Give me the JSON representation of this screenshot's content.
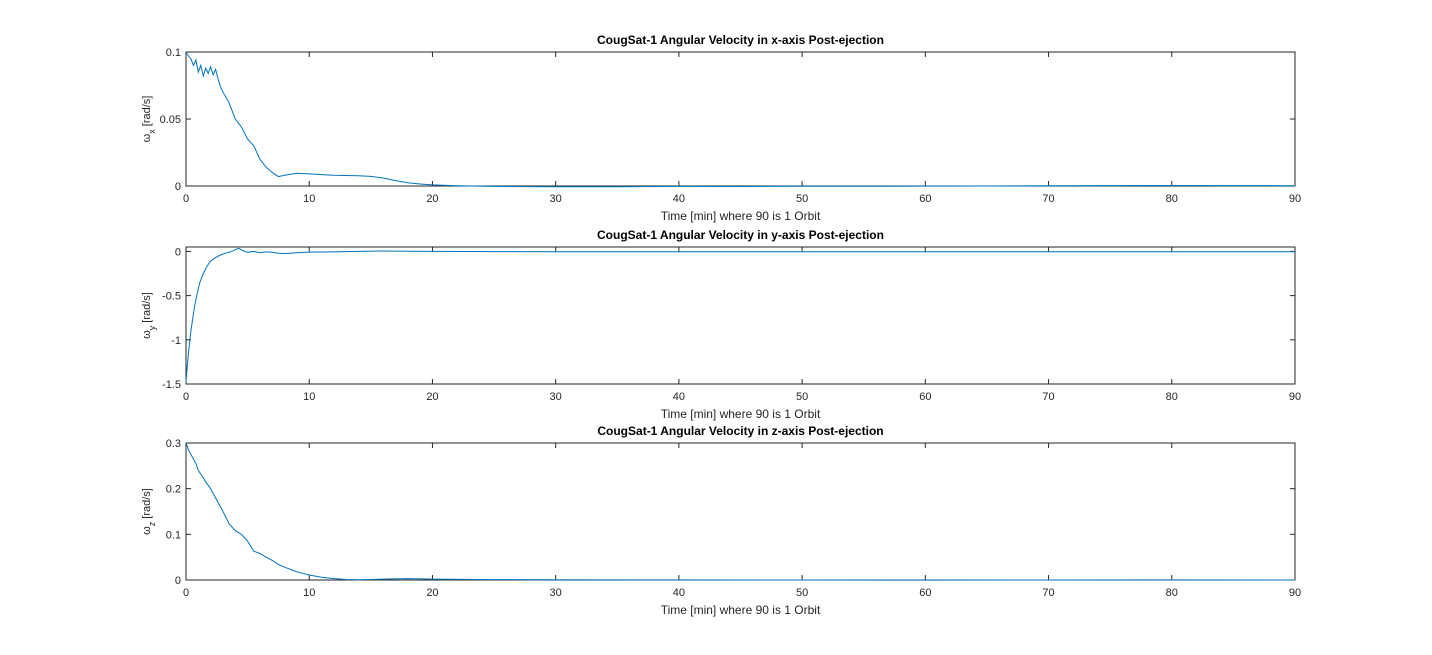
{
  "chart_data": [
    {
      "type": "line",
      "title": "CougSat-1 Angular Velocity in x-axis Post-ejection",
      "xlabel": "Time [min] where 90 is 1 Orbit",
      "ylabel_symbol": "ω",
      "ylabel_sub": "x",
      "ylabel_unit": " [rad/s]",
      "xlim": [
        0,
        90
      ],
      "ylim": [
        0,
        0.1
      ],
      "xticks": [
        0,
        10,
        20,
        30,
        40,
        50,
        60,
        70,
        80,
        90
      ],
      "xtick_labels": [
        "0",
        "10",
        "20",
        "30",
        "40",
        "50",
        "60",
        "70",
        "80",
        "90"
      ],
      "yticks": [
        0,
        0.05,
        0.1
      ],
      "ytick_labels": [
        "0",
        "0.05",
        "0.1"
      ],
      "grid": false,
      "color": "#0072BD",
      "series": [
        {
          "x": [
            0,
            0.2,
            0.4,
            0.6,
            0.8,
            1.0,
            1.2,
            1.4,
            1.6,
            1.8,
            2.0,
            2.2,
            2.4,
            2.6,
            2.8,
            3.0,
            3.5,
            4.0,
            4.5,
            5.0,
            5.5,
            6.0,
            6.5,
            7.0,
            7.5,
            8.0,
            9.0,
            10,
            11,
            12,
            13,
            14,
            15,
            16,
            17,
            18,
            19,
            20,
            22,
            25,
            30,
            35,
            40,
            45,
            50,
            55,
            60,
            65,
            70,
            75,
            80,
            85,
            90
          ],
          "y": [
            0.1,
            0.097,
            0.095,
            0.09,
            0.094,
            0.085,
            0.09,
            0.082,
            0.088,
            0.084,
            0.089,
            0.083,
            0.087,
            0.08,
            0.074,
            0.07,
            0.062,
            0.05,
            0.044,
            0.035,
            0.03,
            0.02,
            0.014,
            0.01,
            0.007,
            0.008,
            0.0095,
            0.009,
            0.0085,
            0.008,
            0.0078,
            0.0076,
            0.0072,
            0.006,
            0.004,
            0.0025,
            0.0015,
            0.0008,
            0.0002,
            -0.0003,
            -0.0006,
            -0.0005,
            -0.0003,
            -0.0004,
            -0.0002,
            -0.0002,
            -0.0001,
            0.0,
            0.0002,
            0.0003,
            0.0004,
            0.0003,
            0.0002
          ]
        }
      ]
    },
    {
      "type": "line",
      "title": "CougSat-1 Angular Velocity in y-axis Post-ejection",
      "xlabel": "Time [min] where 90 is 1 Orbit",
      "ylabel_symbol": "ω",
      "ylabel_sub": "y",
      "ylabel_unit": " [rad/s]",
      "xlim": [
        0,
        90
      ],
      "ylim": [
        -1.5,
        0.05
      ],
      "xticks": [
        0,
        10,
        20,
        30,
        40,
        50,
        60,
        70,
        80,
        90
      ],
      "xtick_labels": [
        "0",
        "10",
        "20",
        "30",
        "40",
        "50",
        "60",
        "70",
        "80",
        "90"
      ],
      "yticks": [
        -1.5,
        -1,
        -0.5,
        0
      ],
      "ytick_labels": [
        "-1.5",
        "-1",
        "-0.5",
        "0"
      ],
      "grid": false,
      "color": "#0072BD",
      "series": [
        {
          "x": [
            0,
            0.1,
            0.2,
            0.35,
            0.5,
            0.7,
            0.9,
            1.1,
            1.4,
            1.7,
            2.0,
            2.4,
            2.8,
            3.2,
            3.6,
            4.0,
            4.3,
            4.6,
            5.0,
            5.5,
            6.0,
            6.5,
            7.0,
            7.5,
            8.0,
            9.0,
            10,
            12,
            14,
            16,
            18,
            20,
            25,
            30,
            40,
            50,
            60,
            70,
            80,
            90
          ],
          "y": [
            -1.48,
            -1.3,
            -1.15,
            -0.95,
            -0.8,
            -0.62,
            -0.48,
            -0.36,
            -0.25,
            -0.17,
            -0.11,
            -0.07,
            -0.04,
            -0.02,
            -0.005,
            0.02,
            0.035,
            0.01,
            -0.01,
            0.0,
            -0.015,
            -0.005,
            -0.01,
            -0.02,
            -0.025,
            -0.015,
            -0.008,
            -0.005,
            0.0,
            0.005,
            0.003,
            0.0,
            -0.002,
            -0.003,
            -0.004,
            -0.003,
            -0.004,
            -0.003,
            -0.004,
            -0.004
          ]
        }
      ]
    },
    {
      "type": "line",
      "title": "CougSat-1 Angular Velocity in z-axis Post-ejection",
      "xlabel": "Time [min] where 90 is 1 Orbit",
      "ylabel_symbol": "ω",
      "ylabel_sub": "z",
      "ylabel_unit": " [rad/s]",
      "xlim": [
        0,
        90
      ],
      "ylim": [
        0,
        0.3
      ],
      "xticks": [
        0,
        10,
        20,
        30,
        40,
        50,
        60,
        70,
        80,
        90
      ],
      "xtick_labels": [
        "0",
        "10",
        "20",
        "30",
        "40",
        "50",
        "60",
        "70",
        "80",
        "90"
      ],
      "yticks": [
        0,
        0.1,
        0.2,
        0.3
      ],
      "ytick_labels": [
        "0",
        "0.1",
        "0.2",
        "0.3"
      ],
      "grid": false,
      "color": "#0072BD",
      "series": [
        {
          "x": [
            0,
            0.2,
            0.5,
            0.8,
            1.0,
            1.3,
            1.6,
            2.0,
            2.5,
            3.0,
            3.5,
            4.0,
            4.5,
            5.0,
            5.5,
            6.0,
            6.5,
            7.0,
            7.5,
            8.0,
            8.5,
            9.0,
            10,
            11,
            12,
            13,
            14,
            15,
            16,
            18,
            20,
            25,
            30,
            40,
            50,
            60,
            70,
            80,
            90
          ],
          "y": [
            0.3,
            0.285,
            0.27,
            0.255,
            0.24,
            0.228,
            0.215,
            0.2,
            0.175,
            0.15,
            0.123,
            0.108,
            0.1,
            0.085,
            0.063,
            0.058,
            0.05,
            0.043,
            0.034,
            0.028,
            0.023,
            0.018,
            0.011,
            0.006,
            0.003,
            0.001,
            0.0005,
            0.001,
            0.002,
            0.003,
            0.002,
            0.0008,
            0.0004,
            0.0002,
            0.0,
            -0.0002,
            0.0,
            0.0002,
            0.0
          ]
        }
      ]
    }
  ]
}
